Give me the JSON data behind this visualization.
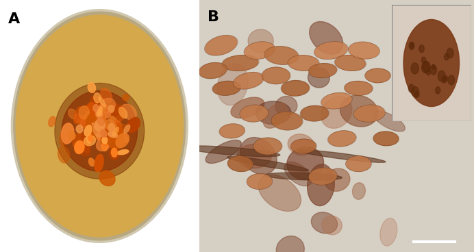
{
  "figure_width": 6.92,
  "figure_height": 3.68,
  "dpi": 100,
  "bg_color": "#ffffff",
  "panel_A_label": "A",
  "panel_B_label": "B",
  "label_fontsize": 16,
  "label_fontweight": "bold",
  "label_color": "#000000",
  "panel_A_bg": "#f5f0e8",
  "petri_dish_color": "#d4a84b",
  "petri_dish_rim": "#c8b89a",
  "colony_center_color": "#8B2500",
  "colony_mid_color": "#cc5500",
  "colony_outer_color": "#e87820",
  "panel_B_bg": "#d6cfc4",
  "scale_bar_color": "#ffffff",
  "inset_bg": "#e8ddd0"
}
